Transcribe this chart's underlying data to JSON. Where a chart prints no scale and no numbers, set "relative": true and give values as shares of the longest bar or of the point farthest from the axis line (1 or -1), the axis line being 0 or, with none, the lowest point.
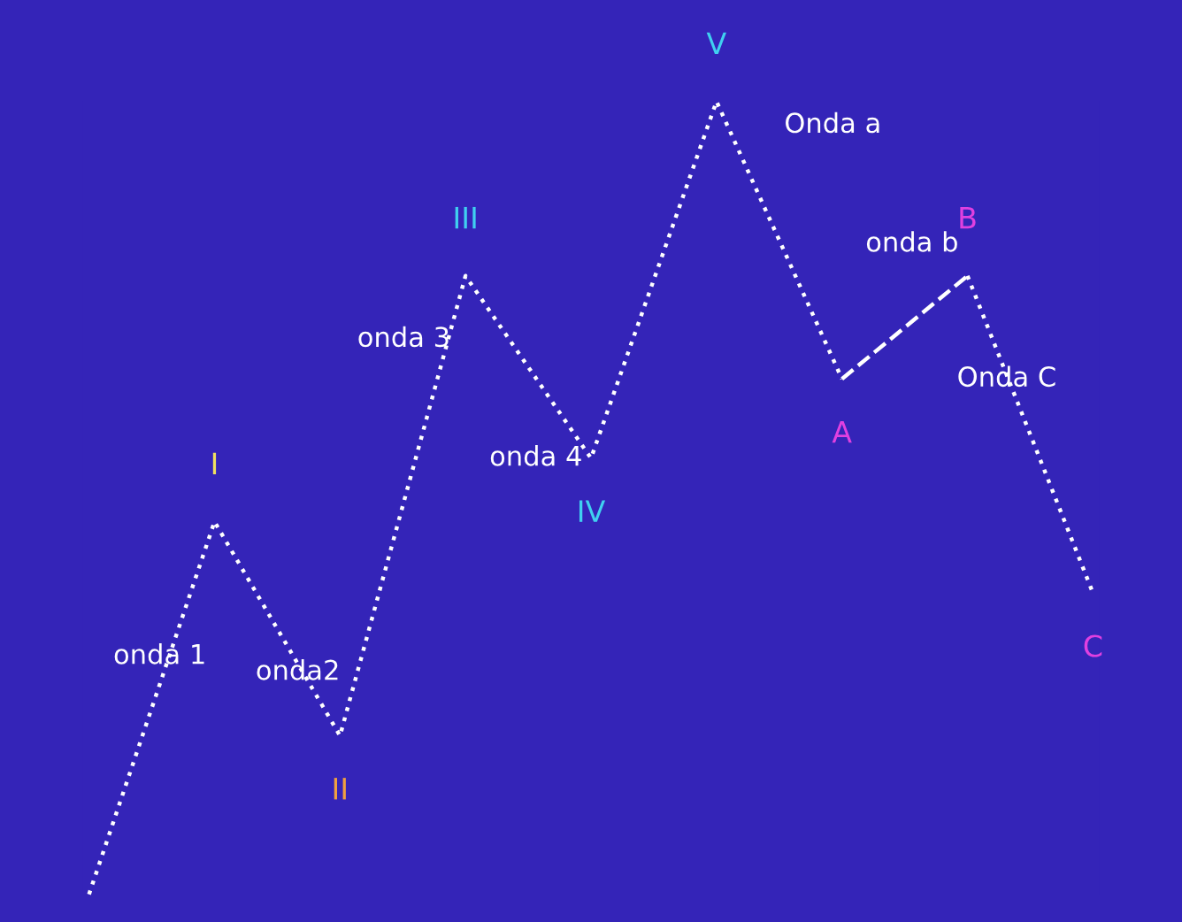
{
  "chart_data": {
    "type": "line",
    "relative": true,
    "categories": [
      null,
      "I",
      "II",
      "III",
      "IV",
      "V",
      "A",
      "B",
      "C"
    ],
    "colors": [
      "#ffffff",
      "#f0e060",
      "#f0a040",
      "#40d0f0",
      "#40d0f0",
      "#40d0f0",
      "#e040e0",
      "#e040e0",
      "#e040e0"
    ],
    "series": [
      {
        "color": "#ffffff",
        "line_style": "dotted",
        "values": [
          0,
          0.47,
          0.2,
          0.78,
          0.55,
          1,
          0.65,
          null,
          null
        ]
      },
      {
        "color": "#ffffff",
        "line_style": "dashed",
        "values": [
          null,
          null,
          null,
          null,
          null,
          null,
          0.65,
          0.78,
          null
        ]
      },
      {
        "color": "#ffffff",
        "line_style": "dotted",
        "values": [
          null,
          null,
          null,
          null,
          null,
          null,
          null,
          0.78,
          0.38
        ]
      }
    ],
    "annotations": [
      "onda 1",
      "onda2",
      "onda 3",
      "onda 4",
      "Onda a",
      "onda b",
      "Onda C"
    ]
  }
}
